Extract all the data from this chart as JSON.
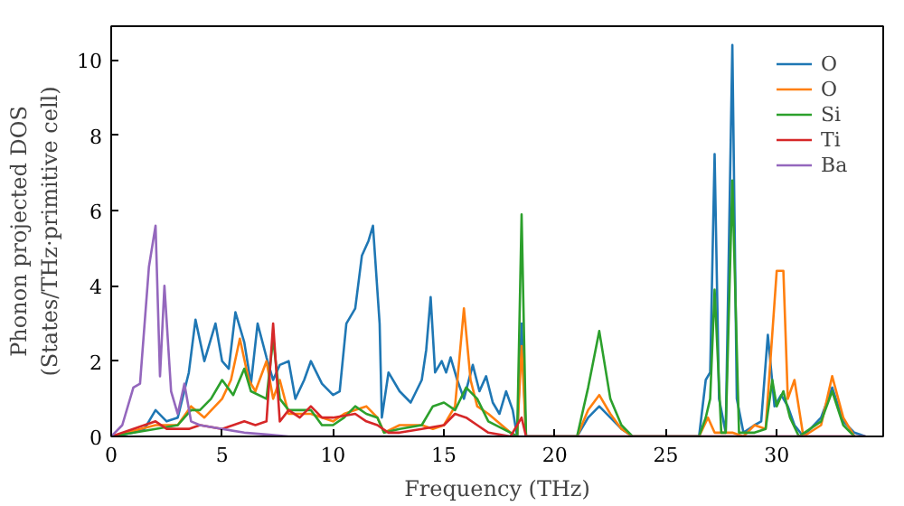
{
  "chart_data": {
    "type": "line",
    "xlabel": "Frequency (THz)",
    "ylabel": "Phonon projected DOS\n(States/THz·primitive cell)",
    "xlim": [
      0,
      34.8
    ],
    "ylim": [
      0,
      10.9
    ],
    "xticks": [
      0,
      5,
      10,
      15,
      20,
      25,
      30
    ],
    "yticks": [
      0,
      2,
      4,
      6,
      8,
      10
    ],
    "grid": false,
    "legend": "top right",
    "series": [
      {
        "name": "O",
        "color": "#1f77b4",
        "x": [
          0,
          1,
          1.5,
          2,
          2.5,
          3,
          3.5,
          3.8,
          4.2,
          4.7,
          5,
          5.3,
          5.6,
          6,
          6.3,
          6.6,
          7,
          7.3,
          7.6,
          8,
          8.3,
          8.7,
          9,
          9.5,
          10,
          10.3,
          10.6,
          11,
          11.3,
          11.6,
          11.8,
          12.1,
          12.2,
          12.5,
          13,
          13.5,
          14,
          14.2,
          14.4,
          14.6,
          14.9,
          15.1,
          15.3,
          15.6,
          15.9,
          16.3,
          16.6,
          16.9,
          17.2,
          17.5,
          17.8,
          18.1,
          18.3,
          18.5,
          18.7,
          21,
          21.5,
          22,
          22.5,
          23,
          23.5,
          26.5,
          26.8,
          27,
          27.2,
          27.4,
          27.7,
          28,
          28.2,
          28.5,
          29,
          29.3,
          29.6,
          29.9,
          30.2,
          30.5,
          30.8,
          31.2,
          32,
          32.5,
          33,
          33.5,
          34
        ],
        "values": [
          0,
          0.1,
          0.2,
          0.7,
          0.4,
          0.5,
          1.7,
          3.1,
          2.0,
          3.0,
          2.0,
          1.8,
          3.3,
          2.5,
          1.4,
          3.0,
          2.1,
          1.5,
          1.9,
          2.0,
          1.0,
          1.5,
          2.0,
          1.4,
          1.1,
          1.2,
          3.0,
          3.4,
          4.8,
          5.2,
          5.6,
          3.0,
          0.5,
          1.7,
          1.2,
          0.9,
          1.5,
          2.3,
          3.7,
          1.7,
          2.0,
          1.7,
          2.1,
          1.5,
          1.0,
          1.9,
          1.2,
          1.6,
          0.9,
          0.6,
          1.2,
          0.7,
          0,
          3.0,
          0,
          0,
          0.5,
          0.8,
          0.5,
          0.2,
          0,
          0,
          1.5,
          1.7,
          7.5,
          1.0,
          0.1,
          10.4,
          1.0,
          0.1,
          0.3,
          0.4,
          2.7,
          0.8,
          1.1,
          0.8,
          0.3,
          0,
          0.5,
          1.3,
          0.4,
          0.1,
          0
        ]
      },
      {
        "name": "O",
        "color": "#ff7f0e",
        "x": [
          0,
          2,
          3,
          3.6,
          4.2,
          5,
          5.4,
          5.8,
          6.2,
          6.5,
          7,
          7.3,
          7.6,
          8,
          9,
          10,
          10.5,
          11,
          11.5,
          12,
          12.3,
          13,
          14,
          14.5,
          15,
          15.5,
          15.9,
          16.2,
          16.5,
          17,
          18,
          18.3,
          18.5,
          18.7,
          21,
          21.5,
          22,
          22.5,
          23,
          23.5,
          26.5,
          26.9,
          27.2,
          28,
          28.5,
          29,
          29.5,
          30,
          30.3,
          30.5,
          30.8,
          31.2,
          32,
          32.5,
          33,
          33.5
        ],
        "values": [
          0,
          0.3,
          0.3,
          0.8,
          0.5,
          1.0,
          1.5,
          2.6,
          1.5,
          1.2,
          2.0,
          1.0,
          1.5,
          0.6,
          0.6,
          0.4,
          0.6,
          0.7,
          0.8,
          0.5,
          0.1,
          0.3,
          0.3,
          0.2,
          0.3,
          0.8,
          3.4,
          1.5,
          0.8,
          0.6,
          0.1,
          0,
          2.4,
          0,
          0,
          0.7,
          1.1,
          0.6,
          0.2,
          0,
          0,
          0.5,
          0.1,
          0.1,
          0,
          0.3,
          0.2,
          4.4,
          4.4,
          1.0,
          1.5,
          0,
          0.3,
          1.6,
          0.5,
          0
        ]
      },
      {
        "name": "Si",
        "color": "#2ca02c",
        "x": [
          0,
          2,
          3,
          3.6,
          4,
          4.5,
          5,
          5.5,
          6,
          6.3,
          7,
          7.3,
          7.6,
          8,
          9,
          9.5,
          10,
          10.5,
          11,
          11.5,
          12,
          12.3,
          13,
          14,
          14.5,
          15,
          15.5,
          16,
          16.5,
          17,
          18,
          18.3,
          18.5,
          18.7,
          21,
          21.5,
          22,
          22.5,
          23,
          23.5,
          26.5,
          26.8,
          27,
          27.2,
          27.5,
          27.7,
          28,
          28.3,
          29,
          29.5,
          29.8,
          30,
          30.3,
          30.6,
          31,
          32,
          32.5,
          33,
          33.5
        ],
        "values": [
          0,
          0.2,
          0.3,
          0.7,
          0.7,
          1.0,
          1.5,
          1.1,
          1.8,
          1.2,
          1.0,
          2.6,
          1.0,
          0.7,
          0.7,
          0.3,
          0.3,
          0.5,
          0.8,
          0.6,
          0.5,
          0.1,
          0.2,
          0.3,
          0.8,
          0.9,
          0.7,
          1.3,
          1.0,
          0.4,
          0.1,
          0,
          5.9,
          0,
          0,
          1.3,
          2.8,
          1.0,
          0.3,
          0,
          0,
          0.5,
          1.0,
          3.9,
          0.1,
          0.1,
          6.8,
          0.1,
          0.1,
          0.2,
          1.5,
          0.8,
          1.2,
          0.5,
          0,
          0.4,
          1.2,
          0.3,
          0
        ]
      },
      {
        "name": "Ti",
        "color": "#d62728",
        "x": [
          0,
          2,
          2.5,
          3.5,
          4,
          5,
          6,
          6.5,
          7,
          7.3,
          7.6,
          8,
          8.5,
          9,
          9.5,
          10,
          11,
          11.5,
          12,
          12.5,
          13,
          14,
          15,
          15.5,
          16,
          16.5,
          17,
          18,
          18.5,
          18.7,
          34
        ],
        "values": [
          0,
          0.4,
          0.2,
          0.2,
          0.3,
          0.2,
          0.4,
          0.3,
          0.4,
          3.0,
          0.4,
          0.7,
          0.5,
          0.8,
          0.5,
          0.5,
          0.6,
          0.4,
          0.3,
          0.1,
          0.1,
          0.2,
          0.3,
          0.6,
          0.5,
          0.3,
          0.1,
          0,
          0.5,
          0,
          0
        ]
      },
      {
        "name": "Ba",
        "color": "#9467bd",
        "x": [
          0,
          0.5,
          1,
          1.3,
          1.7,
          2,
          2.2,
          2.4,
          2.7,
          3,
          3.3,
          3.6,
          4,
          5,
          6,
          7,
          8,
          34
        ],
        "values": [
          0,
          0.3,
          1.3,
          1.4,
          4.5,
          5.6,
          1.6,
          4.0,
          1.2,
          0.6,
          1.4,
          0.4,
          0.3,
          0.2,
          0.1,
          0.05,
          0,
          0
        ]
      }
    ]
  }
}
